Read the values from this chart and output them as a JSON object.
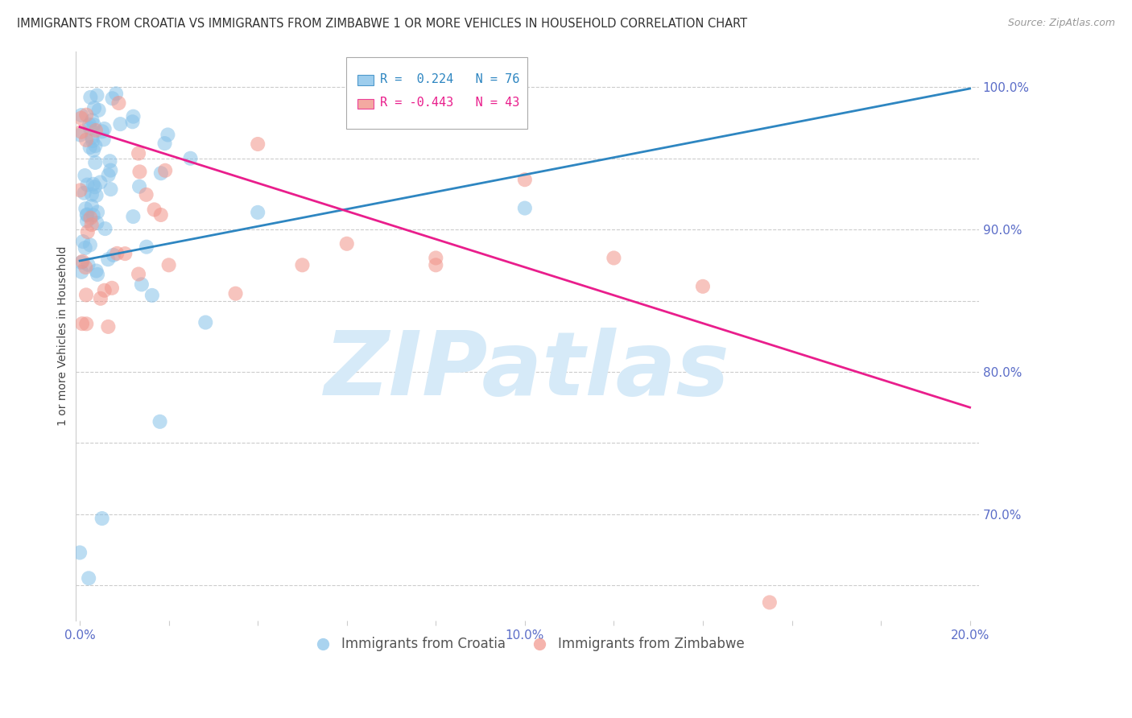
{
  "title": "IMMIGRANTS FROM CROATIA VS IMMIGRANTS FROM ZIMBABWE 1 OR MORE VEHICLES IN HOUSEHOLD CORRELATION CHART",
  "source": "Source: ZipAtlas.com",
  "ylabel": "1 or more Vehicles in Household",
  "xlim": [
    -0.001,
    0.202
  ],
  "ylim": [
    0.625,
    1.025
  ],
  "xtick_positions": [
    0.0,
    0.02,
    0.04,
    0.06,
    0.08,
    0.1,
    0.12,
    0.14,
    0.16,
    0.18,
    0.2
  ],
  "xtick_labels": [
    "0.0%",
    "",
    "",
    "",
    "",
    "10.0%",
    "",
    "",
    "",
    "",
    "20.0%"
  ],
  "ytick_positions": [
    0.65,
    0.7,
    0.75,
    0.8,
    0.85,
    0.9,
    0.95,
    1.0
  ],
  "ytick_labels": [
    "",
    "70.0%",
    "",
    "80.0%",
    "",
    "90.0%",
    "",
    "100.0%"
  ],
  "croatia_R": 0.224,
  "croatia_N": 76,
  "zimbabwe_R": -0.443,
  "zimbabwe_N": 43,
  "croatia_color": "#85C1E9",
  "zimbabwe_color": "#F1948A",
  "trend_croatia_color": "#2E86C1",
  "trend_zimbabwe_color": "#E91E8C",
  "watermark": "ZIPatlas",
  "watermark_color": "#D6EAF8",
  "legend_label_croatia": "Immigrants from Croatia",
  "legend_label_zimbabwe": "Immigrants from Zimbabwe",
  "tick_color": "#5B6DC8",
  "grid_color": "#CCCCCC",
  "title_color": "#333333",
  "source_color": "#999999",
  "trend_croatia_x0": 0.0,
  "trend_croatia_x1": 0.2,
  "trend_croatia_y0": 0.878,
  "trend_croatia_y1": 0.999,
  "trend_zimbabwe_x0": 0.0,
  "trend_zimbabwe_x1": 0.2,
  "trend_zimbabwe_y0": 0.972,
  "trend_zimbabwe_y1": 0.775
}
